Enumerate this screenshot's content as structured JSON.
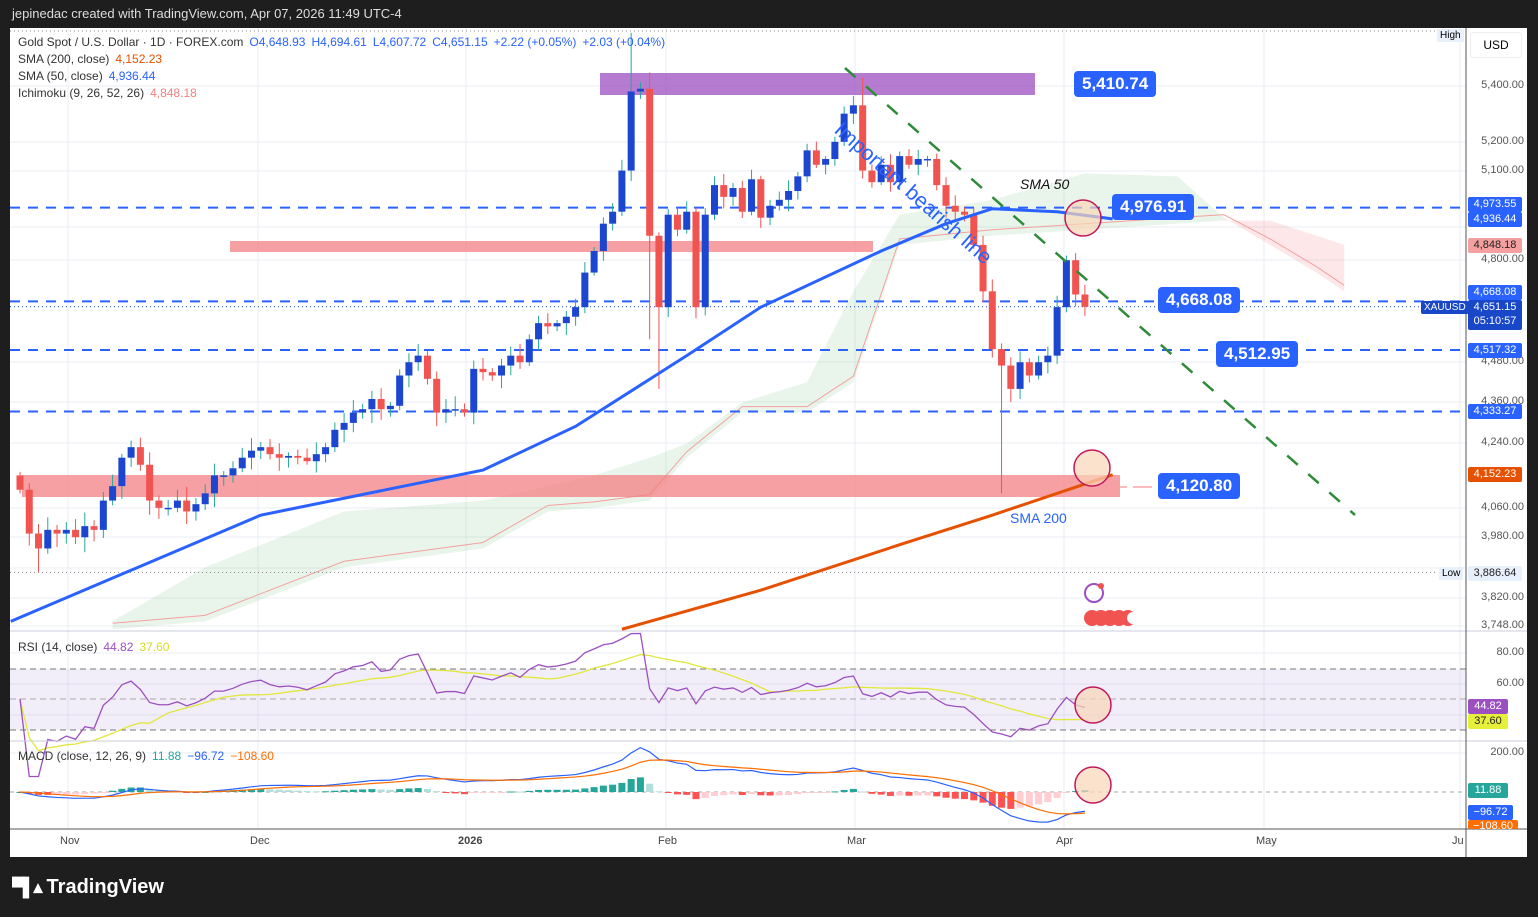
{
  "header": {
    "created": "jepinedac created with TradingView.com, Apr 07, 2026 11:49 UTC-4"
  },
  "legend": {
    "symbol": "Gold Spot / U.S. Dollar · 1D · FOREX.com",
    "o": "O4,648.93",
    "h": "H4,694.61",
    "l": "L4,607.72",
    "c": "C4,651.15",
    "chg1": "+2.22 (+0.05%)",
    "chg2": "+2.03 (+0.04%)",
    "sma200_label": "SMA (200, close)",
    "sma200_val": "4,152.23",
    "sma50_label": "SMA (50, close)",
    "sma50_val": "4,936.44",
    "ichi_label": "Ichimoku (9, 26, 52, 26)",
    "ichi_val": "4,848.18",
    "rsi_label": "RSI (14, close)",
    "rsi_val": "44.82",
    "rsi_ma": "37.60",
    "macd_label": "MACD (close, 12, 26, 9)",
    "macd_hist": "11.88",
    "macd_line": "−96.72",
    "macd_signal": "−108.60"
  },
  "axis": {
    "currency": "USD",
    "high": "High",
    "low": "Low",
    "prices": [
      "5,400.00",
      "5,200.00",
      "5,100.00",
      "4,800.00",
      "4,480.00",
      "4,360.00",
      "4,240.00",
      "4,060.00",
      "3,980.00",
      "3,820.00",
      "3,748.00"
    ],
    "rsi": [
      "80.00",
      "60.00"
    ],
    "macd": [
      "200.00"
    ],
    "tags": {
      "t1": "4,973.55",
      "t2": "4,936.44",
      "t3": "4,848.18",
      "t4": "4,668.08",
      "sym": "XAUUSD",
      "t5": "4,651.15",
      "timer": "05:10:57",
      "t6": "4,517.32",
      "t7": "4,333.27",
      "t8": "4,152.23",
      "low": "3,886.64",
      "rsi1": "44.82",
      "rsi2": "37.60",
      "m1": "11.88",
      "m2": "−96.72",
      "m3": "−108.60"
    }
  },
  "time_labels": [
    "Nov",
    "Dec",
    "2026",
    "Feb",
    "Mar",
    "Apr",
    "May",
    "Ju"
  ],
  "annotations": {
    "trend": "Important bearish line",
    "sma50": "SMA 50",
    "sma200": "SMA 200",
    "l1": "5,410.74",
    "l2": "4,976.91",
    "l3": "4,668.08",
    "l4": "4,512.95",
    "l5": "4,120.80"
  },
  "brand": "TradingView",
  "colors": {
    "up": "#1c45d0",
    "down": "#f05350",
    "sma50": "#2962ff",
    "sma200": "#e65100",
    "rsi": "#9c4fc0",
    "rsi_ma": "#e0e83a",
    "accent": "#2962ff"
  },
  "chart_data": {
    "type": "candlestick",
    "title": "Gold Spot / U.S. Dollar · 1D",
    "scale": "log",
    "ylim": [
      3748,
      5600
    ],
    "first_open": 4150,
    "closes": [
      4110,
      3990,
      3950,
      4000,
      3990,
      4000,
      3980,
      4010,
      4000,
      4080,
      4120,
      4200,
      4230,
      4180,
      4080,
      4060,
      4060,
      4080,
      4050,
      4070,
      4100,
      4150,
      4150,
      4170,
      4200,
      4220,
      4230,
      4210,
      4200,
      4205,
      4200,
      4190,
      4210,
      4230,
      4280,
      4300,
      4330,
      4340,
      4370,
      4340,
      4350,
      4440,
      4480,
      4500,
      4430,
      4330,
      4340,
      4340,
      4330,
      4460,
      4450,
      4440,
      4470,
      4500,
      4480,
      4550,
      4600,
      4590,
      4600,
      4620,
      4650,
      4760,
      4830,
      4920,
      4960,
      5100,
      5380,
      5390,
      4880,
      4650,
      4950,
      4900,
      4960,
      4650,
      4950,
      5050,
      5010,
      5040,
      4960,
      5070,
      4940,
      4980,
      5000,
      5030,
      5080,
      5170,
      5120,
      5140,
      5200,
      5300,
      5330,
      5100,
      5060,
      5120,
      5060,
      5150,
      5120,
      5140,
      5140,
      5050,
      4980,
      4960,
      4950,
      4850,
      4700,
      4520,
      4470,
      4400,
      4480,
      4440,
      4480,
      4500,
      4650,
      4800,
      4690,
      4651
    ],
    "extremes": [
      {
        "i": 66,
        "high": 5598
      },
      {
        "i": 68,
        "high": 5450,
        "low": 4550
      },
      {
        "i": 69,
        "low": 4400
      },
      {
        "i": 106,
        "low": 4100
      },
      {
        "i": 2,
        "low": 3886.64
      },
      {
        "i": 91,
        "high": 5430
      }
    ],
    "sma50": [
      [
        -1,
        3760
      ],
      [
        26,
        4040
      ],
      [
        50,
        4165
      ],
      [
        60,
        4290
      ],
      [
        72,
        4500
      ],
      [
        80,
        4650
      ],
      [
        93,
        4830
      ],
      [
        100,
        4920
      ],
      [
        105,
        4970
      ],
      [
        112,
        4960
      ],
      [
        118,
        4936
      ]
    ],
    "sma200": [
      [
        65,
        3740
      ],
      [
        80,
        3840
      ],
      [
        95,
        3960
      ],
      [
        105,
        4040
      ],
      [
        118,
        4152
      ]
    ],
    "cloud": [
      [
        10,
        3760,
        3740
      ],
      [
        20,
        3900,
        3760
      ],
      [
        35,
        4050,
        3900
      ],
      [
        50,
        4080,
        3950
      ],
      [
        57,
        4120,
        4050
      ],
      [
        62,
        4150,
        4060
      ],
      [
        68,
        4200,
        4080
      ],
      [
        72,
        4240,
        4200
      ],
      [
        78,
        4360,
        4330
      ],
      [
        85,
        4420,
        4330
      ],
      [
        90,
        4700,
        4420
      ],
      [
        95,
        4950,
        4850
      ],
      [
        105,
        5000,
        4880
      ],
      [
        115,
        5090,
        4900
      ],
      [
        125,
        5080,
        4920
      ],
      [
        130,
        4940,
        4930
      ],
      [
        135,
        4850,
        4930
      ],
      [
        140,
        4760,
        4880
      ],
      [
        143,
        4700,
        4850
      ]
    ],
    "levels": [
      4973.55,
      4668.08,
      4517.32,
      4333.27
    ]
  }
}
